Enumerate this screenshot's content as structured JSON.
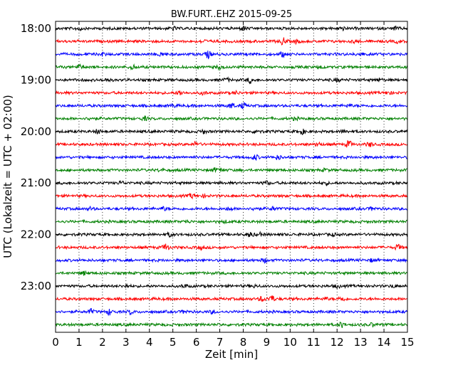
{
  "chart_data": {
    "type": "line",
    "title": "BW.FURT..EHZ 2015-09-25",
    "xlabel": "Zeit  [min]",
    "ylabel": "UTC (Lokalzeit = UTC + 02:00)",
    "xlim": [
      0,
      15
    ],
    "x_ticks": [
      "0",
      "1",
      "2",
      "3",
      "4",
      "5",
      "6",
      "7",
      "8",
      "9",
      "10",
      "11",
      "12",
      "13",
      "14",
      "15"
    ],
    "y_ticks": [
      "18:00",
      "19:00",
      "20:00",
      "21:00",
      "22:00",
      "23:00"
    ],
    "grid": "vertical dotted",
    "trace_colors": [
      "#000000",
      "#ff0000",
      "#0000ff",
      "#008000"
    ],
    "traces": [
      {
        "start": "18:00",
        "events": [
          [
            1.0,
            0.5
          ],
          [
            5.0,
            0.5
          ],
          [
            8.0,
            0.6
          ],
          [
            12.2,
            0.5
          ],
          [
            14.5,
            0.4
          ]
        ]
      },
      {
        "start": "18:15",
        "events": [
          [
            6.3,
            0.4
          ],
          [
            9.7,
            1.0
          ],
          [
            10.3,
            0.5
          ],
          [
            12.8,
            0.4
          ],
          [
            14.6,
            0.4
          ]
        ]
      },
      {
        "start": "18:30",
        "events": [
          [
            2.0,
            0.4
          ],
          [
            4.5,
            0.5
          ],
          [
            6.5,
            1.0
          ],
          [
            9.7,
            0.7
          ],
          [
            13.0,
            0.5
          ]
        ]
      },
      {
        "start": "18:45",
        "events": [
          [
            1.0,
            0.6
          ],
          [
            3.3,
            0.7
          ],
          [
            7.0,
            0.5
          ],
          [
            11.3,
            0.4
          ]
        ]
      },
      {
        "start": "19:00",
        "events": [
          [
            2.2,
            0.4
          ],
          [
            7.3,
            0.4
          ],
          [
            8.3,
            0.8
          ],
          [
            12.0,
            0.4
          ],
          [
            13.8,
            0.4
          ]
        ]
      },
      {
        "start": "19:15",
        "events": [
          [
            5.3,
            0.7
          ],
          [
            6.3,
            0.4
          ],
          [
            7.7,
            0.4
          ],
          [
            14.2,
            0.5
          ]
        ]
      },
      {
        "start": "19:30",
        "events": [
          [
            5.0,
            0.4
          ],
          [
            7.5,
            0.8
          ],
          [
            8.0,
            0.8
          ],
          [
            12.5,
            0.4
          ]
        ]
      },
      {
        "start": "19:45",
        "events": [
          [
            1.5,
            0.4
          ],
          [
            3.8,
            0.5
          ],
          [
            10.2,
            0.3
          ]
        ]
      },
      {
        "start": "20:00",
        "events": [
          [
            1.8,
            0.6
          ],
          [
            6.3,
            0.5
          ],
          [
            8.6,
            0.6
          ],
          [
            10.5,
            0.7
          ],
          [
            12.3,
            0.4
          ]
        ]
      },
      {
        "start": "20:15",
        "events": [
          [
            6.0,
            0.7
          ],
          [
            11.2,
            0.5
          ],
          [
            12.5,
            1.0
          ],
          [
            13.4,
            0.6
          ]
        ]
      },
      {
        "start": "20:30",
        "events": [
          [
            8.5,
            0.8
          ],
          [
            9.5,
            0.6
          ]
        ]
      },
      {
        "start": "20:45",
        "events": [
          [
            4.5,
            0.4
          ],
          [
            6.8,
            0.4
          ],
          [
            7.0,
            0.4
          ],
          [
            11.5,
            0.3
          ]
        ]
      },
      {
        "start": "21:00",
        "events": [
          [
            2.8,
            0.4
          ],
          [
            9.0,
            0.5
          ],
          [
            11.5,
            0.4
          ]
        ]
      },
      {
        "start": "21:15",
        "events": [
          [
            5.8,
            0.6
          ],
          [
            6.3,
            0.3
          ]
        ]
      },
      {
        "start": "21:30",
        "events": [
          [
            1.5,
            0.4
          ],
          [
            4.6,
            0.5
          ],
          [
            7.4,
            0.4
          ],
          [
            8.5,
            0.5
          ],
          [
            9.3,
            0.5
          ],
          [
            13.5,
            0.4
          ]
        ]
      },
      {
        "start": "21:45",
        "events": [
          [
            5.6,
            0.3
          ],
          [
            7.2,
            0.3
          ]
        ]
      },
      {
        "start": "22:00",
        "events": [
          [
            4.9,
            0.6
          ],
          [
            8.3,
            0.7
          ],
          [
            8.7,
            0.4
          ],
          [
            11.8,
            0.4
          ]
        ]
      },
      {
        "start": "22:15",
        "events": [
          [
            4.7,
            1.0
          ],
          [
            6.2,
            0.4
          ],
          [
            14.6,
            0.8
          ]
        ]
      },
      {
        "start": "22:30",
        "events": [
          [
            8.9,
            0.6
          ],
          [
            13.5,
            0.4
          ]
        ]
      },
      {
        "start": "22:45",
        "events": [
          [
            1.2,
            0.5
          ]
        ]
      },
      {
        "start": "23:00",
        "events": [
          [
            3.0,
            0.4
          ],
          [
            5.5,
            0.4
          ],
          [
            8.5,
            0.3
          ],
          [
            12.0,
            0.4
          ],
          [
            14.4,
            0.4
          ]
        ]
      },
      {
        "start": "23:15",
        "events": [
          [
            8.8,
            0.7
          ],
          [
            9.2,
            1.0
          ],
          [
            11.5,
            0.4
          ],
          [
            12.2,
            0.7
          ]
        ]
      },
      {
        "start": "23:30",
        "events": [
          [
            1.5,
            0.7
          ],
          [
            2.3,
            0.8
          ],
          [
            3.2,
            0.6
          ],
          [
            5.5,
            0.4
          ],
          [
            6.7,
            0.4
          ]
        ]
      },
      {
        "start": "23:45",
        "events": [
          [
            12.2,
            0.7
          ],
          [
            13.5,
            0.4
          ]
        ]
      }
    ]
  }
}
